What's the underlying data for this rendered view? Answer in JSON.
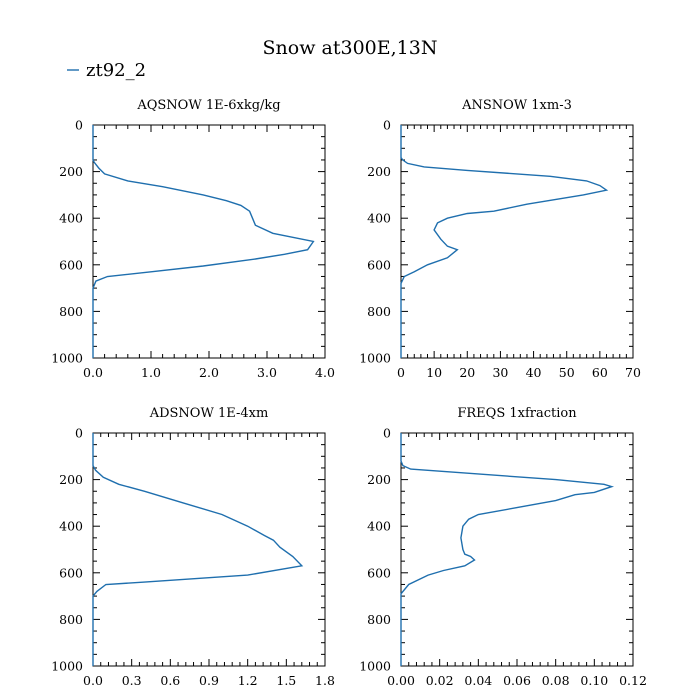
{
  "title": "Snow at300E,13N",
  "legend": {
    "label": "zt92_2",
    "color": "#1f6fae",
    "placement": "top-left"
  },
  "colors": {
    "series": "#1f6fae",
    "axis": "#000000"
  },
  "chart_data": [
    {
      "type": "line",
      "title": "AQSNOW  1E-6xkg/kg",
      "xlim": [
        0,
        4.0
      ],
      "xticks": [
        "0.0",
        "1.0",
        "2.0",
        "3.0",
        "4.0"
      ],
      "ylim": [
        1000,
        0
      ],
      "yticks": [
        "0",
        "200",
        "400",
        "600",
        "800",
        "1000"
      ],
      "series": [
        {
          "name": "zt92_2",
          "x": [
            0,
            0,
            0.02,
            0.1,
            0.2,
            0.6,
            1.2,
            1.9,
            2.3,
            2.55,
            2.7,
            2.75,
            2.8,
            3.1,
            3.8,
            3.7,
            3.3,
            2.8,
            1.9,
            1.0,
            0.25,
            0.05,
            0,
            0
          ],
          "y": [
            0,
            150,
            160,
            185,
            210,
            240,
            265,
            300,
            325,
            345,
            370,
            400,
            430,
            465,
            500,
            535,
            555,
            575,
            605,
            630,
            650,
            670,
            700,
            1000
          ]
        }
      ]
    },
    {
      "type": "line",
      "title": "ANSNOW  1xm-3",
      "xlim": [
        0,
        70
      ],
      "xticks": [
        "0",
        "10",
        "20",
        "30",
        "40",
        "50",
        "60",
        "70"
      ],
      "ylim": [
        1000,
        0
      ],
      "yticks": [
        "0",
        "200",
        "400",
        "600",
        "800",
        "1000"
      ],
      "series": [
        {
          "name": "zt92_2",
          "x": [
            0,
            0,
            0.5,
            2,
            7,
            20,
            45,
            56,
            60,
            62,
            55,
            38,
            28,
            20,
            14,
            11,
            10,
            12,
            14,
            17,
            14,
            8,
            4,
            1,
            0,
            0
          ],
          "y": [
            0,
            140,
            150,
            165,
            180,
            195,
            220,
            240,
            260,
            280,
            300,
            340,
            370,
            380,
            400,
            420,
            450,
            490,
            520,
            535,
            570,
            600,
            630,
            650,
            680,
            1000
          ]
        }
      ]
    },
    {
      "type": "line",
      "title": "ADSNOW  1E-4xm",
      "xlim": [
        0,
        1.8
      ],
      "xticks": [
        "0.0",
        "0.3",
        "0.6",
        "0.9",
        "1.2",
        "1.5",
        "1.8"
      ],
      "ylim": [
        1000,
        0
      ],
      "yticks": [
        "0",
        "200",
        "400",
        "600",
        "800",
        "1000"
      ],
      "series": [
        {
          "name": "zt92_2",
          "x": [
            0,
            0,
            0.02,
            0.08,
            0.2,
            0.4,
            0.7,
            1.0,
            1.2,
            1.33,
            1.4,
            1.45,
            1.55,
            1.62,
            1.2,
            0.8,
            0.4,
            0.1,
            0.03,
            0,
            0
          ],
          "y": [
            0,
            140,
            160,
            190,
            220,
            250,
            300,
            350,
            400,
            440,
            460,
            490,
            530,
            570,
            610,
            625,
            640,
            650,
            680,
            700,
            1000
          ]
        }
      ]
    },
    {
      "type": "line",
      "title": "FREQS  1xfraction",
      "xlim": [
        0,
        0.12
      ],
      "xticks": [
        "0.00",
        "0.02",
        "0.04",
        "0.06",
        "0.08",
        "0.10",
        "0.12"
      ],
      "ylim": [
        1000,
        0
      ],
      "yticks": [
        "0",
        "200",
        "400",
        "600",
        "800",
        "1000"
      ],
      "series": [
        {
          "name": "zt92_2",
          "x": [
            0,
            0,
            0.001,
            0.005,
            0.03,
            0.08,
            0.105,
            0.109,
            0.1,
            0.09,
            0.08,
            0.06,
            0.04,
            0.035,
            0.032,
            0.031,
            0.032,
            0.033,
            0.036,
            0.038,
            0.033,
            0.022,
            0.014,
            0.004,
            0,
            0
          ],
          "y": [
            0,
            120,
            140,
            155,
            170,
            200,
            220,
            230,
            255,
            265,
            290,
            320,
            350,
            370,
            400,
            450,
            500,
            520,
            530,
            545,
            570,
            590,
            610,
            650,
            690,
            1000
          ]
        }
      ]
    }
  ]
}
